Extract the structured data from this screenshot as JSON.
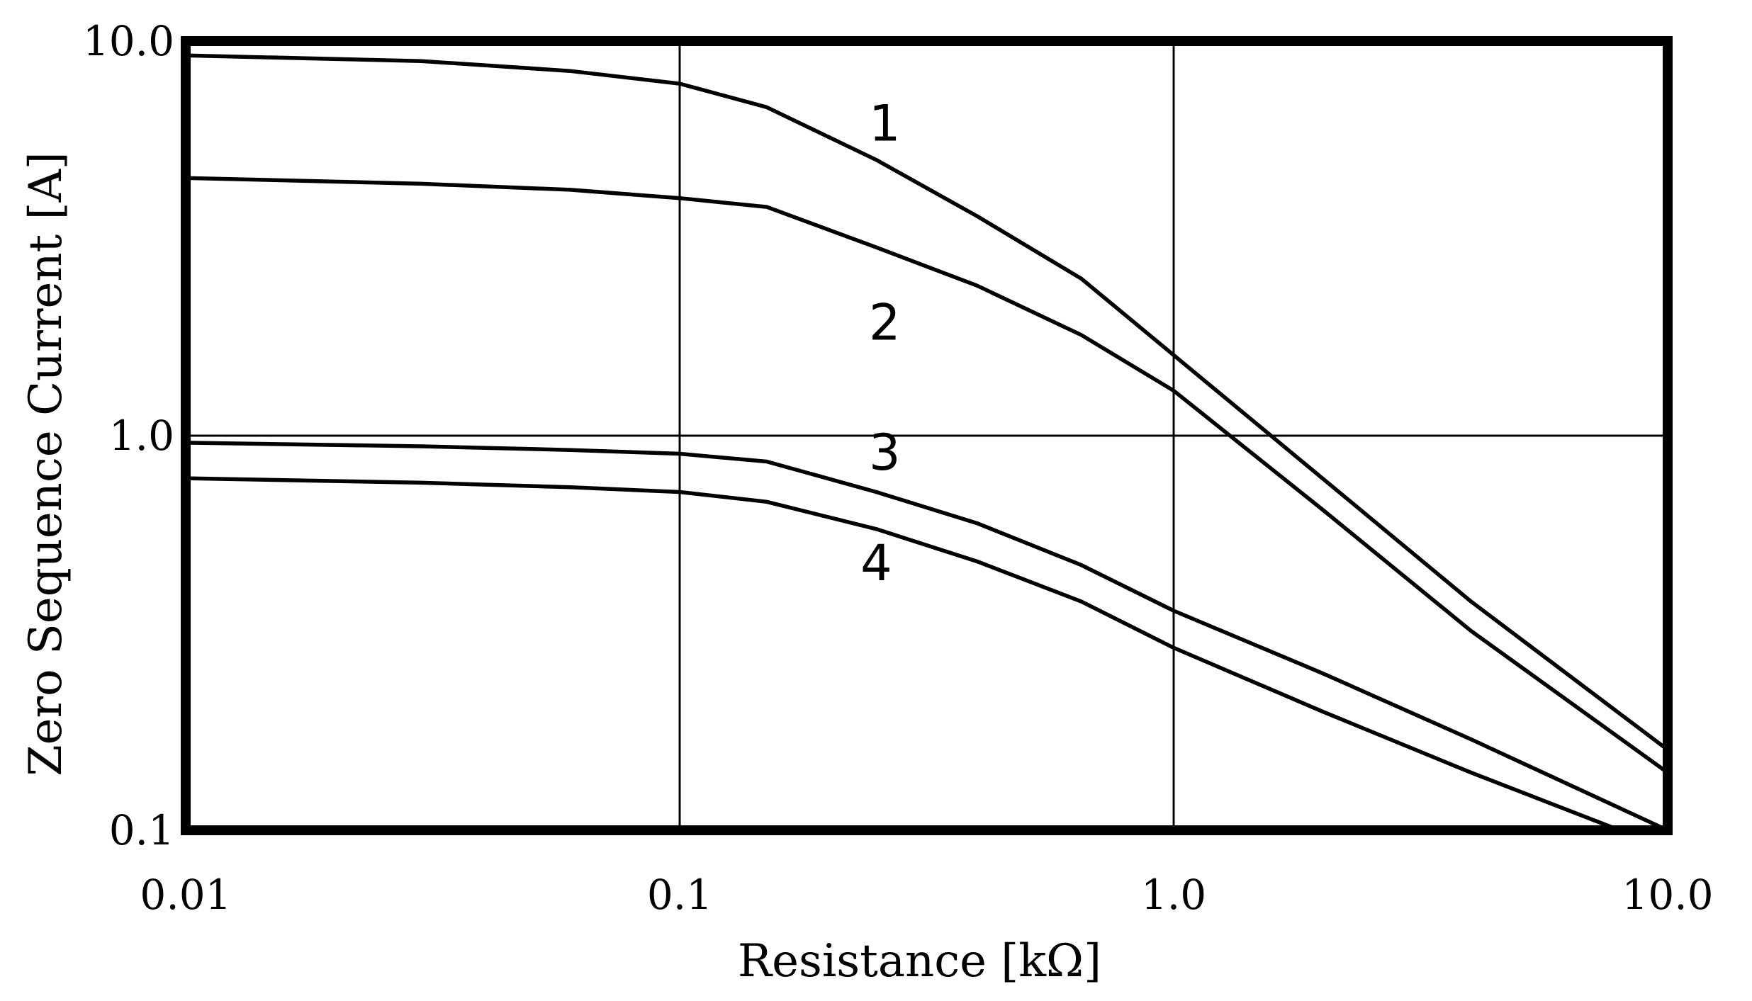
{
  "chart_data": {
    "type": "line",
    "xlabel": "Resistance [kΩ]",
    "ylabel": "Zero Sequence Current [A]",
    "xscale": "log",
    "yscale": "log",
    "xlim": [
      0.01,
      10.0
    ],
    "ylim": [
      0.1,
      10.0
    ],
    "grid": true,
    "x_ticks": [
      "0.01",
      "0.1",
      "1.0",
      "10.0"
    ],
    "y_ticks": [
      "10.0",
      "1.0",
      "0.1"
    ],
    "series": [
      {
        "name": "1",
        "x": [
          0.01,
          0.03,
          0.06,
          0.1,
          0.15,
          0.25,
          0.4,
          0.65,
          1.0,
          2.0,
          4.0,
          10.0
        ],
        "y": [
          9.2,
          8.9,
          8.4,
          7.8,
          6.8,
          5.0,
          3.6,
          2.5,
          1.6,
          0.78,
          0.38,
          0.16
        ]
      },
      {
        "name": "2",
        "x": [
          0.01,
          0.03,
          0.06,
          0.1,
          0.15,
          0.25,
          0.4,
          0.65,
          1.0,
          2.0,
          4.0,
          10.0
        ],
        "y": [
          4.5,
          4.35,
          4.2,
          4.0,
          3.8,
          3.0,
          2.4,
          1.8,
          1.3,
          0.65,
          0.32,
          0.14
        ]
      },
      {
        "name": "3",
        "x": [
          0.01,
          0.03,
          0.06,
          0.1,
          0.15,
          0.25,
          0.4,
          0.65,
          1.0,
          2.0,
          4.0,
          10.0
        ],
        "y": [
          0.96,
          0.94,
          0.92,
          0.9,
          0.86,
          0.72,
          0.6,
          0.47,
          0.36,
          0.25,
          0.17,
          0.1
        ]
      },
      {
        "name": "4",
        "x": [
          0.01,
          0.03,
          0.06,
          0.1,
          0.15,
          0.25,
          0.4,
          0.65,
          1.0,
          2.0,
          4.0,
          8.0
        ],
        "y": [
          0.78,
          0.76,
          0.74,
          0.72,
          0.68,
          0.58,
          0.48,
          0.38,
          0.29,
          0.2,
          0.14,
          0.1
        ]
      }
    ]
  }
}
